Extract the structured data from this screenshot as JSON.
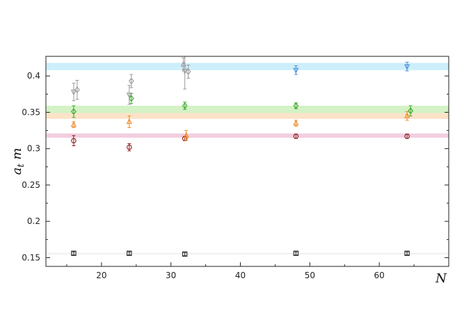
{
  "chart_data": {
    "type": "scatter",
    "title": "",
    "xlabel": "N",
    "ylabel": "a_t m",
    "xlim": [
      12,
      70
    ],
    "ylim": [
      0.138,
      0.427
    ],
    "x_ticks": [
      20,
      30,
      40,
      50,
      60
    ],
    "y_ticks": [
      0.15,
      0.2,
      0.25,
      0.3,
      0.35,
      0.4
    ],
    "x_tick_labels": [
      "20",
      "30",
      "40",
      "50",
      "60"
    ],
    "y_tick_labels": [
      "0.15",
      "0.2",
      "0.25",
      "0.3",
      "0.35",
      "0.4"
    ],
    "grid": false,
    "legend": "none",
    "bands": [
      {
        "ymin": 0.408,
        "ymax": 0.418,
        "color": "#cdeefb"
      },
      {
        "ymin": 0.349,
        "ymax": 0.359,
        "color": "#d4f2c6"
      },
      {
        "ymin": 0.341,
        "ymax": 0.349,
        "color": "#fbe3c8"
      },
      {
        "ymin": 0.315,
        "ymax": 0.321,
        "color": "#f2cfe0"
      },
      {
        "ymin": 0.1545,
        "ymax": 0.1565,
        "color": "#efefef"
      }
    ],
    "series": [
      {
        "marker": "square",
        "color": "#333333",
        "points": [
          {
            "x": 16.0,
            "y": 0.156,
            "err": 0.002
          },
          {
            "x": 24.0,
            "y": 0.156,
            "err": 0.002
          },
          {
            "x": 32.0,
            "y": 0.155,
            "err": 0.002
          },
          {
            "x": 48.0,
            "y": 0.156,
            "err": 0.002
          },
          {
            "x": 64.0,
            "y": 0.156,
            "err": 0.002
          }
        ]
      },
      {
        "marker": "circle",
        "color": "#8b1a1a",
        "points": [
          {
            "x": 16.0,
            "y": 0.311,
            "err": 0.007
          },
          {
            "x": 24.0,
            "y": 0.302,
            "err": 0.005
          },
          {
            "x": 32.0,
            "y": 0.314,
            "err": 0.003
          },
          {
            "x": 48.0,
            "y": 0.317,
            "err": 0.003
          },
          {
            "x": 64.0,
            "y": 0.317,
            "err": 0.003
          }
        ]
      },
      {
        "marker": "triangle-up",
        "color": "#f08a24",
        "points": [
          {
            "x": 16.0,
            "y": 0.333,
            "err": 0.004
          },
          {
            "x": 24.0,
            "y": 0.337,
            "err": 0.008
          },
          {
            "x": 32.2,
            "y": 0.318,
            "err": 0.007
          },
          {
            "x": 48.0,
            "y": 0.335,
            "err": 0.004
          },
          {
            "x": 64.0,
            "y": 0.345,
            "err": 0.006
          }
        ]
      },
      {
        "marker": "diamond",
        "color": "#3aa829",
        "points": [
          {
            "x": 16.0,
            "y": 0.351,
            "err": 0.008
          },
          {
            "x": 24.3,
            "y": 0.369,
            "err": 0.007
          },
          {
            "x": 32.0,
            "y": 0.359,
            "err": 0.005
          },
          {
            "x": 48.0,
            "y": 0.359,
            "err": 0.004
          },
          {
            "x": 64.5,
            "y": 0.352,
            "err": 0.007
          }
        ]
      },
      {
        "marker": "triangle-down",
        "color": "#4a90d9",
        "points": [
          {
            "x": 48.0,
            "y": 0.408,
            "err": 0.006
          },
          {
            "x": 64.0,
            "y": 0.413,
            "err": 0.006
          }
        ]
      },
      {
        "marker": "triangle-down",
        "color": "#999999",
        "points": [
          {
            "x": 16.0,
            "y": 0.378,
            "err": 0.012
          },
          {
            "x": 24.0,
            "y": 0.374,
            "err": 0.013
          },
          {
            "x": 32.0,
            "y": 0.407,
            "err": 0.025
          }
        ]
      },
      {
        "marker": "diamond",
        "color": "#999999",
        "points": [
          {
            "x": 16.5,
            "y": 0.381,
            "err": 0.013
          },
          {
            "x": 24.3,
            "y": 0.393,
            "err": 0.009
          },
          {
            "x": 32.5,
            "y": 0.406,
            "err": 0.009
          }
        ]
      },
      {
        "marker": "triangle-up",
        "color": "#999999",
        "points": [
          {
            "x": 31.8,
            "y": 0.416,
            "err": 0.009
          }
        ]
      }
    ]
  }
}
